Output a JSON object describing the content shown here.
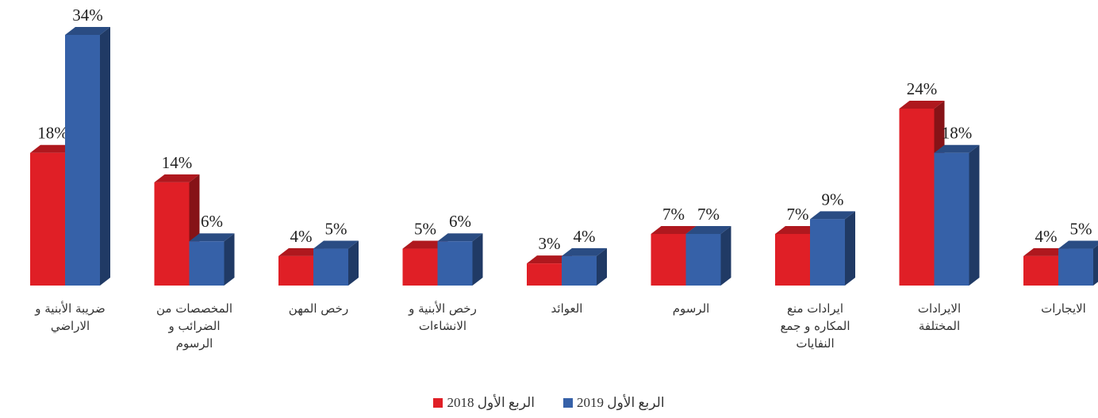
{
  "chart_data": {
    "type": "bar3d",
    "categories": [
      "ضريبة الأبنية و\nالاراضي",
      "المخصصات من\nالضرائب و\nالرسوم",
      "رخص المهن",
      "رخص الأبنية و\nالانشاءات",
      "العوائد",
      "الرسوم",
      "ايرادات منع\nالمكاره و جمع\nالنفايات",
      "الايرادات\nالمختلفة",
      "الايجارات"
    ],
    "series": [
      {
        "name": "الربع الأول 2018",
        "color": "#e01f26",
        "values": [
          18,
          14,
          4,
          5,
          3,
          7,
          7,
          24,
          4
        ],
        "value_labels": [
          "18%",
          "14%",
          "4%",
          "5%",
          "3%",
          "7%",
          "7%",
          "24%",
          "4%"
        ]
      },
      {
        "name": "الربع الأول 2019",
        "color": "#3661a8",
        "values": [
          34,
          6,
          5,
          6,
          4,
          7,
          9,
          18,
          5
        ],
        "value_labels": [
          "34%",
          "6%",
          "5%",
          "6%",
          "4%",
          "7%",
          "9%",
          "18%",
          "5%"
        ]
      }
    ],
    "legend": "bottom"
  }
}
